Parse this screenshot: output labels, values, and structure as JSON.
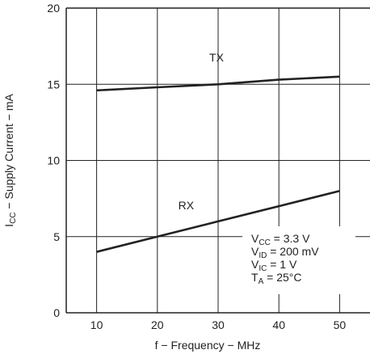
{
  "chart_data": {
    "type": "line",
    "x": [
      10,
      20,
      30,
      40,
      50
    ],
    "series": [
      {
        "name": "TX",
        "values": [
          14.6,
          14.8,
          15.0,
          15.3,
          15.5
        ]
      },
      {
        "name": "RX",
        "values": [
          4.0,
          5.0,
          6.0,
          7.0,
          8.0
        ]
      }
    ],
    "xlabel": "f − Frequency − MHz",
    "ylabel": "ICC − Supply Current − mA",
    "ylabel_main": "I",
    "ylabel_sub": "CC",
    "ylabel_rest": " − Supply Current − mA",
    "xlim": [
      5,
      55
    ],
    "ylim": [
      0,
      20
    ],
    "xticks": [
      10,
      20,
      30,
      40,
      50
    ],
    "yticks": [
      0,
      5,
      10,
      15,
      20
    ],
    "grid": true,
    "line_color": "#222222",
    "conditions": [
      {
        "main": "V",
        "sub": "CC",
        "rest": " = 3.3 V"
      },
      {
        "main": "V",
        "sub": "ID",
        "rest": " = 200 mV"
      },
      {
        "main": "V",
        "sub": "IC",
        "rest": " = 1 V"
      },
      {
        "main": "T",
        "sub": "A",
        "rest": " = 25°C"
      }
    ]
  }
}
